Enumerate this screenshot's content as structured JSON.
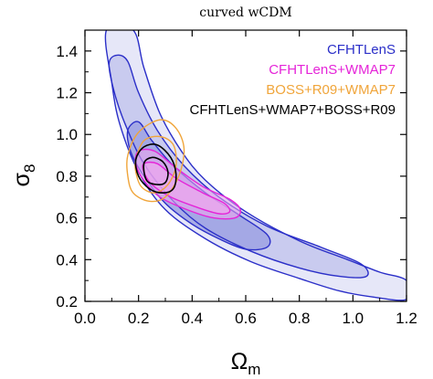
{
  "chart_data": {
    "type": "contour",
    "title": "curved wCDM",
    "xlabel": "Ω",
    "xlabel_sub": "m",
    "ylabel": "σ",
    "ylabel_sub": "8",
    "xlim": [
      0.0,
      1.2
    ],
    "ylim": [
      0.2,
      1.5
    ],
    "xticks": [
      "0.0",
      "0.2",
      "0.4",
      "0.6",
      "0.8",
      "1.0",
      "1.2"
    ],
    "yticks": [
      "0.2",
      "0.4",
      "0.6",
      "0.8",
      "1.0",
      "1.2",
      "1.4"
    ],
    "legend_position": "top-right",
    "grid": false,
    "series": [
      {
        "name": "CFHTLenS",
        "color": "#2b2fc8",
        "contours": [
          [
            [
              0.08,
              1.5
            ],
            [
              0.18,
              1.5
            ],
            [
              0.22,
              1.32
            ],
            [
              0.28,
              1.1
            ],
            [
              0.36,
              0.92
            ],
            [
              0.45,
              0.78
            ],
            [
              0.6,
              0.63
            ],
            [
              0.8,
              0.49
            ],
            [
              0.98,
              0.4
            ],
            [
              1.1,
              0.34
            ],
            [
              1.2,
              0.3
            ],
            [
              1.2,
              0.21
            ],
            [
              1.08,
              0.22
            ],
            [
              0.95,
              0.25
            ],
            [
              0.8,
              0.31
            ],
            [
              0.62,
              0.39
            ],
            [
              0.45,
              0.5
            ],
            [
              0.3,
              0.64
            ],
            [
              0.2,
              0.82
            ],
            [
              0.13,
              1.05
            ],
            [
              0.1,
              1.25
            ],
            [
              0.08,
              1.5
            ]
          ],
          [
            [
              0.09,
              1.34
            ],
            [
              0.12,
              1.38
            ],
            [
              0.16,
              1.35
            ],
            [
              0.2,
              1.2
            ],
            [
              0.27,
              1.02
            ],
            [
              0.37,
              0.85
            ],
            [
              0.5,
              0.7
            ],
            [
              0.68,
              0.56
            ],
            [
              0.88,
              0.46
            ],
            [
              1.03,
              0.38
            ],
            [
              1.05,
              0.32
            ],
            [
              0.95,
              0.32
            ],
            [
              0.8,
              0.36
            ],
            [
              0.62,
              0.44
            ],
            [
              0.45,
              0.55
            ],
            [
              0.33,
              0.68
            ],
            [
              0.22,
              0.86
            ],
            [
              0.15,
              1.05
            ],
            [
              0.11,
              1.2
            ],
            [
              0.09,
              1.34
            ]
          ],
          [
            [
              0.16,
              1.02
            ],
            [
              0.2,
              1.06
            ],
            [
              0.25,
              0.97
            ],
            [
              0.33,
              0.85
            ],
            [
              0.45,
              0.72
            ],
            [
              0.58,
              0.61
            ],
            [
              0.68,
              0.52
            ],
            [
              0.68,
              0.46
            ],
            [
              0.6,
              0.45
            ],
            [
              0.5,
              0.5
            ],
            [
              0.4,
              0.57
            ],
            [
              0.3,
              0.67
            ],
            [
              0.22,
              0.8
            ],
            [
              0.17,
              0.92
            ],
            [
              0.16,
              1.02
            ]
          ]
        ]
      },
      {
        "name": "CFHTLenS+WMAP7",
        "color": "#e524d8",
        "contours": [
          [
            [
              0.2,
              0.92
            ],
            [
              0.26,
              0.92
            ],
            [
              0.34,
              0.84
            ],
            [
              0.44,
              0.75
            ],
            [
              0.54,
              0.69
            ],
            [
              0.58,
              0.64
            ],
            [
              0.56,
              0.6
            ],
            [
              0.48,
              0.6
            ],
            [
              0.38,
              0.64
            ],
            [
              0.28,
              0.7
            ],
            [
              0.22,
              0.78
            ],
            [
              0.19,
              0.86
            ],
            [
              0.2,
              0.92
            ]
          ],
          [
            [
              0.22,
              0.86
            ],
            [
              0.27,
              0.86
            ],
            [
              0.34,
              0.79
            ],
            [
              0.44,
              0.72
            ],
            [
              0.52,
              0.67
            ],
            [
              0.54,
              0.63
            ],
            [
              0.5,
              0.62
            ],
            [
              0.42,
              0.65
            ],
            [
              0.32,
              0.7
            ],
            [
              0.25,
              0.76
            ],
            [
              0.22,
              0.82
            ],
            [
              0.22,
              0.86
            ]
          ]
        ]
      },
      {
        "name": "BOSS+R09+WMAP7",
        "color": "#f0a53a",
        "contours": [
          [
            [
              0.16,
              0.9
            ],
            [
              0.2,
              1.01
            ],
            [
              0.28,
              1.07
            ],
            [
              0.34,
              1.03
            ],
            [
              0.37,
              0.93
            ],
            [
              0.35,
              0.8
            ],
            [
              0.3,
              0.7
            ],
            [
              0.24,
              0.68
            ],
            [
              0.18,
              0.72
            ],
            [
              0.16,
              0.8
            ],
            [
              0.16,
              0.9
            ]
          ],
          [
            [
              0.19,
              0.88
            ],
            [
              0.22,
              0.97
            ],
            [
              0.28,
              0.99
            ],
            [
              0.33,
              0.95
            ],
            [
              0.34,
              0.85
            ],
            [
              0.31,
              0.76
            ],
            [
              0.26,
              0.72
            ],
            [
              0.21,
              0.75
            ],
            [
              0.19,
              0.82
            ],
            [
              0.19,
              0.88
            ]
          ]
        ]
      },
      {
        "name": "CFHTLenS+WMAP7+BOSS+R09",
        "color": "#000000",
        "contours": [
          [
            [
              0.19,
              0.88
            ],
            [
              0.22,
              0.94
            ],
            [
              0.27,
              0.95
            ],
            [
              0.32,
              0.89
            ],
            [
              0.34,
              0.81
            ],
            [
              0.33,
              0.74
            ],
            [
              0.29,
              0.72
            ],
            [
              0.24,
              0.74
            ],
            [
              0.2,
              0.8
            ],
            [
              0.19,
              0.88
            ]
          ],
          [
            [
              0.22,
              0.86
            ],
            [
              0.25,
              0.89
            ],
            [
              0.29,
              0.87
            ],
            [
              0.31,
              0.82
            ],
            [
              0.3,
              0.77
            ],
            [
              0.27,
              0.76
            ],
            [
              0.23,
              0.78
            ],
            [
              0.22,
              0.86
            ]
          ]
        ]
      }
    ]
  }
}
